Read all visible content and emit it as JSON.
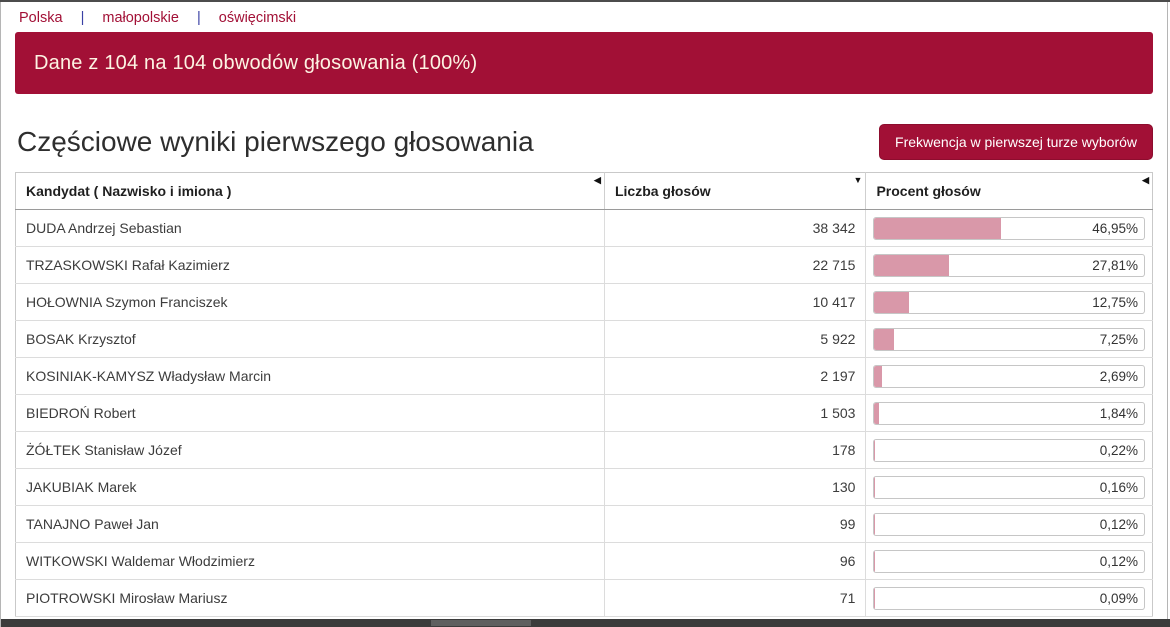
{
  "breadcrumb": {
    "separator": "|",
    "items": [
      {
        "label": "Polska"
      },
      {
        "label": "małopolskie"
      },
      {
        "label": "oświęcimski"
      }
    ]
  },
  "banner": {
    "text": "Dane z 104 na 104 obwodów głosowania (100%)"
  },
  "page": {
    "title": "Częściowe wyniki pierwszego głosowania"
  },
  "actions": {
    "frequency_button_label": "Frekwencja w pierwszej turze wyborów"
  },
  "table": {
    "columns": [
      {
        "label": "Kandydat ( Nazwisko i imiona )",
        "sort_glyph": "◀"
      },
      {
        "label": "Liczba głosów",
        "sort_glyph": "▼"
      },
      {
        "label": "Procent głosów",
        "sort_glyph": "◀"
      }
    ],
    "rows": [
      {
        "candidate": "DUDA Andrzej Sebastian",
        "votes": "38 342",
        "percent": 46.95,
        "percent_label": "46,95%"
      },
      {
        "candidate": "TRZASKOWSKI Rafał Kazimierz",
        "votes": "22 715",
        "percent": 27.81,
        "percent_label": "27,81%"
      },
      {
        "candidate": "HOŁOWNIA Szymon Franciszek",
        "votes": "10 417",
        "percent": 12.75,
        "percent_label": "12,75%"
      },
      {
        "candidate": "BOSAK Krzysztof",
        "votes": "5 922",
        "percent": 7.25,
        "percent_label": "7,25%"
      },
      {
        "candidate": "KOSINIAK-KAMYSZ Władysław Marcin",
        "votes": "2 197",
        "percent": 2.69,
        "percent_label": "2,69%"
      },
      {
        "candidate": "BIEDROŃ Robert",
        "votes": "1 503",
        "percent": 1.84,
        "percent_label": "1,84%"
      },
      {
        "candidate": "ŻÓŁTEK Stanisław Józef",
        "votes": "178",
        "percent": 0.22,
        "percent_label": "0,22%"
      },
      {
        "candidate": "JAKUBIAK Marek",
        "votes": "130",
        "percent": 0.16,
        "percent_label": "0,16%"
      },
      {
        "candidate": "TANAJNO Paweł Jan",
        "votes": "99",
        "percent": 0.12,
        "percent_label": "0,12%"
      },
      {
        "candidate": "WITKOWSKI Waldemar Włodzimierz",
        "votes": "96",
        "percent": 0.12,
        "percent_label": "0,12%"
      },
      {
        "candidate": "PIOTROWSKI Mirosław Mariusz",
        "votes": "71",
        "percent": 0.09,
        "percent_label": "0,09%"
      }
    ]
  },
  "colors": {
    "accent": "#a21036",
    "bar_fill": "#d998a9",
    "sep_color": "#3a41a5"
  }
}
